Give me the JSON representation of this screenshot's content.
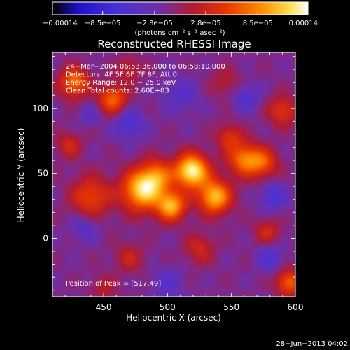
{
  "chart_data": {
    "type": "heatmap",
    "title": "Reconstructed RHESSI Image",
    "xlabel": "Heliocentric X (arcsec)",
    "ylabel": "Heliocentric Y (arcsec)",
    "xlim": [
      410,
      600
    ],
    "ylim": [
      -45,
      143
    ],
    "x_ticks": [
      450,
      500,
      550,
      600
    ],
    "y_ticks": [
      0,
      50,
      100
    ],
    "colorbar": {
      "min": -0.00014,
      "max": 0.00014,
      "tick_values": [
        -0.00014,
        -8.5e-05,
        -2.8e-05,
        2.8e-05,
        8.5e-05,
        0.00014
      ],
      "tick_labels": [
        "−0.00014",
        "−8.5e−05",
        "−2.8e−05",
        "2.8e−05",
        "8.5e−05",
        "0.00014"
      ],
      "units_label": "(photons cm⁻² s⁻¹ asec⁻²)"
    },
    "annotations": [
      "24−Mar−2004 06:53:36.000 to 06:58:10.000",
      "Detectors: 4F 5F 6F 7F 8F, Att 0",
      "Energy Range: 12.0 − 25.0 keV",
      "Clean    Total counts: 2.60E+03"
    ],
    "peak_label": "Position of Peak = [517,49]",
    "peak_position": [
      517,
      49
    ],
    "sources": [
      {
        "x": 519,
        "y": 52,
        "amp": 1.0,
        "sigma": 9
      },
      {
        "x": 480,
        "y": 37,
        "amp": 0.85,
        "sigma": 11
      },
      {
        "x": 537,
        "y": 32,
        "amp": 0.8,
        "sigma": 9
      },
      {
        "x": 503,
        "y": 25,
        "amp": 0.75,
        "sigma": 8
      },
      {
        "x": 492,
        "y": 48,
        "amp": 0.5,
        "sigma": 9
      },
      {
        "x": 560,
        "y": 61,
        "amp": 0.6,
        "sigma": 9
      },
      {
        "x": 575,
        "y": 58,
        "amp": 0.45,
        "sigma": 8
      },
      {
        "x": 440,
        "y": 32,
        "amp": 0.45,
        "sigma": 11
      },
      {
        "x": 427,
        "y": 120,
        "amp": 0.6,
        "sigma": 8
      },
      {
        "x": 457,
        "y": 107,
        "amp": 0.55,
        "sigma": 8
      },
      {
        "x": 548,
        "y": 78,
        "amp": 0.35,
        "sigma": 7
      },
      {
        "x": 590,
        "y": 98,
        "amp": 0.4,
        "sigma": 8
      },
      {
        "x": 595,
        "y": -34,
        "amp": 0.55,
        "sigma": 7
      },
      {
        "x": 578,
        "y": 5,
        "amp": 0.3,
        "sigma": 7
      },
      {
        "x": 525,
        "y": -8,
        "amp": 0.3,
        "sigma": 8
      },
      {
        "x": 470,
        "y": -15,
        "amp": 0.25,
        "sigma": 8
      },
      {
        "x": 423,
        "y": 72,
        "amp": 0.3,
        "sigma": 7
      },
      {
        "x": 470,
        "y": 130,
        "amp": 0.25,
        "sigma": 7
      },
      {
        "x": 545,
        "y": 120,
        "amp": 0.2,
        "sigma": 8
      },
      {
        "x": 450,
        "y": -38,
        "amp": 0.2,
        "sigma": 7
      },
      {
        "x": 470,
        "y": 88,
        "amp": -0.35,
        "sigma": 8
      },
      {
        "x": 510,
        "y": 110,
        "amp": -0.25,
        "sigma": 9
      },
      {
        "x": 562,
        "y": 108,
        "amp": -0.3,
        "sigma": 7
      },
      {
        "x": 583,
        "y": 32,
        "amp": -0.35,
        "sigma": 7
      },
      {
        "x": 435,
        "y": 8,
        "amp": -0.25,
        "sigma": 7
      },
      {
        "x": 500,
        "y": -35,
        "amp": -0.25,
        "sigma": 8
      },
      {
        "x": 580,
        "y": -15,
        "amp": -0.3,
        "sigma": 7
      },
      {
        "x": 440,
        "y": 95,
        "amp": -0.2,
        "sigma": 6
      }
    ],
    "baseline": -0.05
  },
  "footer_timestamp": "28−Jun−2013 04:02"
}
